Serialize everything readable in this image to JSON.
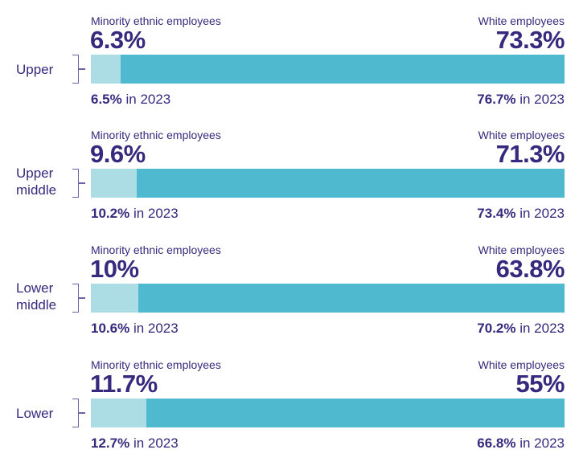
{
  "chart_data": {
    "type": "bar",
    "subtype": "stacked-horizontal",
    "minority_label": "Minority ethnic employees",
    "white_label": "White employees",
    "prev_suffix": "in 2023",
    "colors": {
      "minority": "#acdde5",
      "white": "#4fb9d0",
      "text": "#37297d"
    },
    "categories": [
      "Upper",
      "Upper middle",
      "Lower middle",
      "Lower"
    ],
    "series": [
      {
        "name": "Minority ethnic employees",
        "values": [
          6.3,
          9.6,
          10,
          11.7
        ],
        "display": [
          "6.3%",
          "9.6%",
          "10%",
          "11.7%"
        ],
        "prev_2023": [
          "6.5%",
          "10.2%",
          "10.6%",
          "12.7%"
        ]
      },
      {
        "name": "White employees",
        "values": [
          73.3,
          71.3,
          63.8,
          55
        ],
        "display": [
          "73.3%",
          "71.3%",
          "63.8%",
          "55%"
        ],
        "prev_2023": [
          "76.7%",
          "73.4%",
          "70.2%",
          "66.8%"
        ]
      }
    ]
  }
}
